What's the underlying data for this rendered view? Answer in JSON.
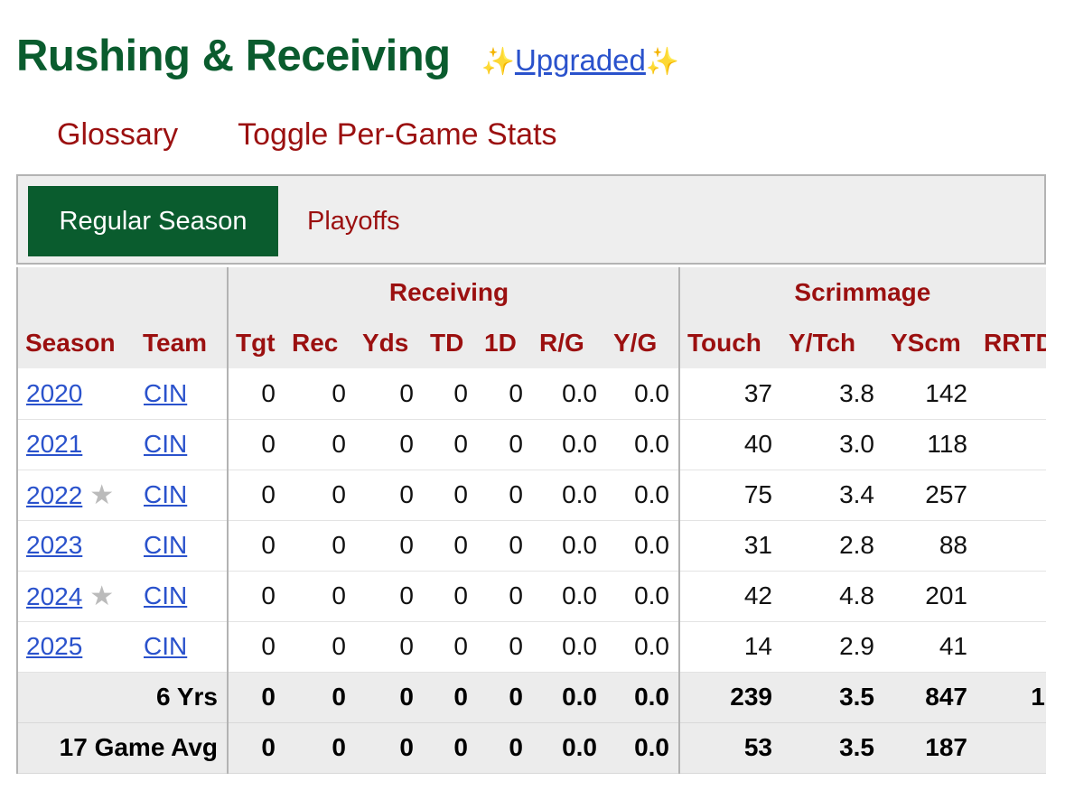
{
  "header": {
    "title": "Rushing & Receiving",
    "sparkle_left": "✨",
    "upgraded_label": "Upgraded",
    "sparkle_right": "✨"
  },
  "links": {
    "glossary": "Glossary",
    "toggle_per_game": "Toggle Per-Game Stats"
  },
  "filter": {
    "regular_season": "Regular Season",
    "playoffs": "Playoffs"
  },
  "table": {
    "groups": {
      "receiving": "Receiving",
      "scrimmage": "Scrimmage"
    },
    "columns": [
      "Season",
      "Team",
      "Tgt",
      "Rec",
      "Yds",
      "TD",
      "1D",
      "R/G",
      "Y/G",
      "Touch",
      "Y/Tch",
      "YScm",
      "RRTD"
    ],
    "rows": [
      {
        "season": "2020",
        "star": false,
        "team": "CIN",
        "tgt": "0",
        "rec": "0",
        "yds": "0",
        "td": "0",
        "fd": "0",
        "rg": "0.0",
        "yg": "0.0",
        "touch": "37",
        "ytch": "3.8",
        "yscm": "142",
        "rrtd": ""
      },
      {
        "season": "2021",
        "star": false,
        "team": "CIN",
        "tgt": "0",
        "rec": "0",
        "yds": "0",
        "td": "0",
        "fd": "0",
        "rg": "0.0",
        "yg": "0.0",
        "touch": "40",
        "ytch": "3.0",
        "yscm": "118",
        "rrtd": ""
      },
      {
        "season": "2022",
        "star": true,
        "team": "CIN",
        "tgt": "0",
        "rec": "0",
        "yds": "0",
        "td": "0",
        "fd": "0",
        "rg": "0.0",
        "yg": "0.0",
        "touch": "75",
        "ytch": "3.4",
        "yscm": "257",
        "rrtd": ""
      },
      {
        "season": "2023",
        "star": false,
        "team": "CIN",
        "tgt": "0",
        "rec": "0",
        "yds": "0",
        "td": "0",
        "fd": "0",
        "rg": "0.0",
        "yg": "0.0",
        "touch": "31",
        "ytch": "2.8",
        "yscm": "88",
        "rrtd": ""
      },
      {
        "season": "2024",
        "star": true,
        "team": "CIN",
        "tgt": "0",
        "rec": "0",
        "yds": "0",
        "td": "0",
        "fd": "0",
        "rg": "0.0",
        "yg": "0.0",
        "touch": "42",
        "ytch": "4.8",
        "yscm": "201",
        "rrtd": ""
      },
      {
        "season": "2025",
        "star": false,
        "team": "CIN",
        "tgt": "0",
        "rec": "0",
        "yds": "0",
        "td": "0",
        "fd": "0",
        "rg": "0.0",
        "yg": "0.0",
        "touch": "14",
        "ytch": "2.9",
        "yscm": "41",
        "rrtd": ""
      }
    ],
    "totals": [
      {
        "label": "6 Yrs",
        "tgt": "0",
        "rec": "0",
        "yds": "0",
        "td": "0",
        "fd": "0",
        "rg": "0.0",
        "yg": "0.0",
        "touch": "239",
        "ytch": "3.5",
        "yscm": "847",
        "rrtd": "1"
      },
      {
        "label": "17 Game Avg",
        "tgt": "0",
        "rec": "0",
        "yds": "0",
        "td": "0",
        "fd": "0",
        "rg": "0.0",
        "yg": "0.0",
        "touch": "53",
        "ytch": "3.5",
        "yscm": "187",
        "rrtd": ""
      }
    ]
  }
}
